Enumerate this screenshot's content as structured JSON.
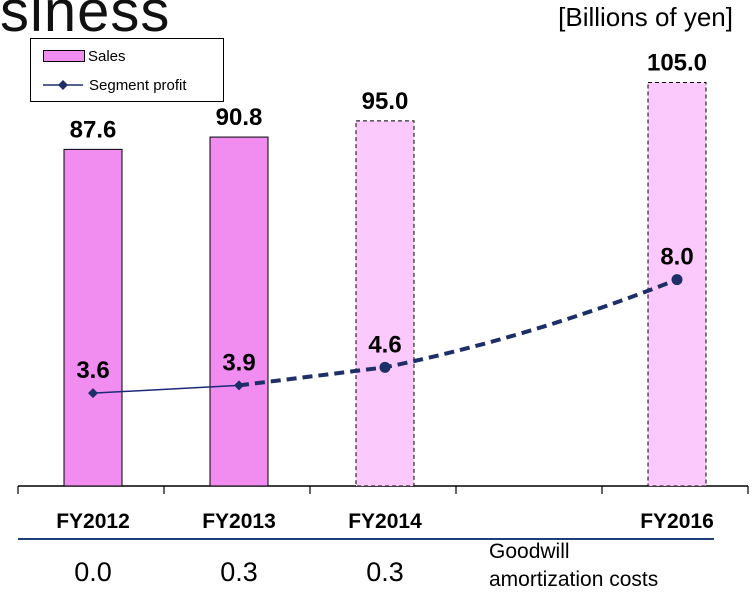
{
  "title": "siness",
  "units_label": "[Billions of yen]",
  "legend": {
    "sales": "Sales",
    "profit": "Segment profit"
  },
  "colors": {
    "sales_actual": "#f18cf0",
    "sales_forecast": "#fbc9fb",
    "profit_line_actual": "#1a2a7a",
    "profit_line_forecast": "#1d2f66",
    "profit_marker": "#1d2f66"
  },
  "goodwill": {
    "label": "Goodwill\namortization costs",
    "values": [
      "0.0",
      "0.3",
      "0.3"
    ]
  },
  "chart_data": {
    "type": "bar",
    "categories": [
      "FY2012",
      "FY2013",
      "FY2014",
      "FY2016"
    ],
    "gap_categories": [
      "",
      ""
    ],
    "x_slots": [
      0,
      1,
      2,
      4
    ],
    "ylim": [
      0,
      112
    ],
    "grid": false,
    "legend_position": "top-left",
    "series": [
      {
        "name": "Sales",
        "kind": "bar",
        "values": [
          87.6,
          90.8,
          95.0,
          105.0
        ],
        "labels": [
          "87.6",
          "90.8",
          "95.0",
          "105.0"
        ],
        "forecast": [
          false,
          false,
          true,
          true
        ]
      },
      {
        "name": "Segment profit",
        "kind": "line",
        "values": [
          3.6,
          3.9,
          4.6,
          8.0
        ],
        "labels": [
          "3.6",
          "3.9",
          "4.6",
          "8.0"
        ],
        "forecast": [
          false,
          false,
          true,
          true
        ]
      }
    ],
    "profit_ylim": [
      0,
      20
    ]
  }
}
